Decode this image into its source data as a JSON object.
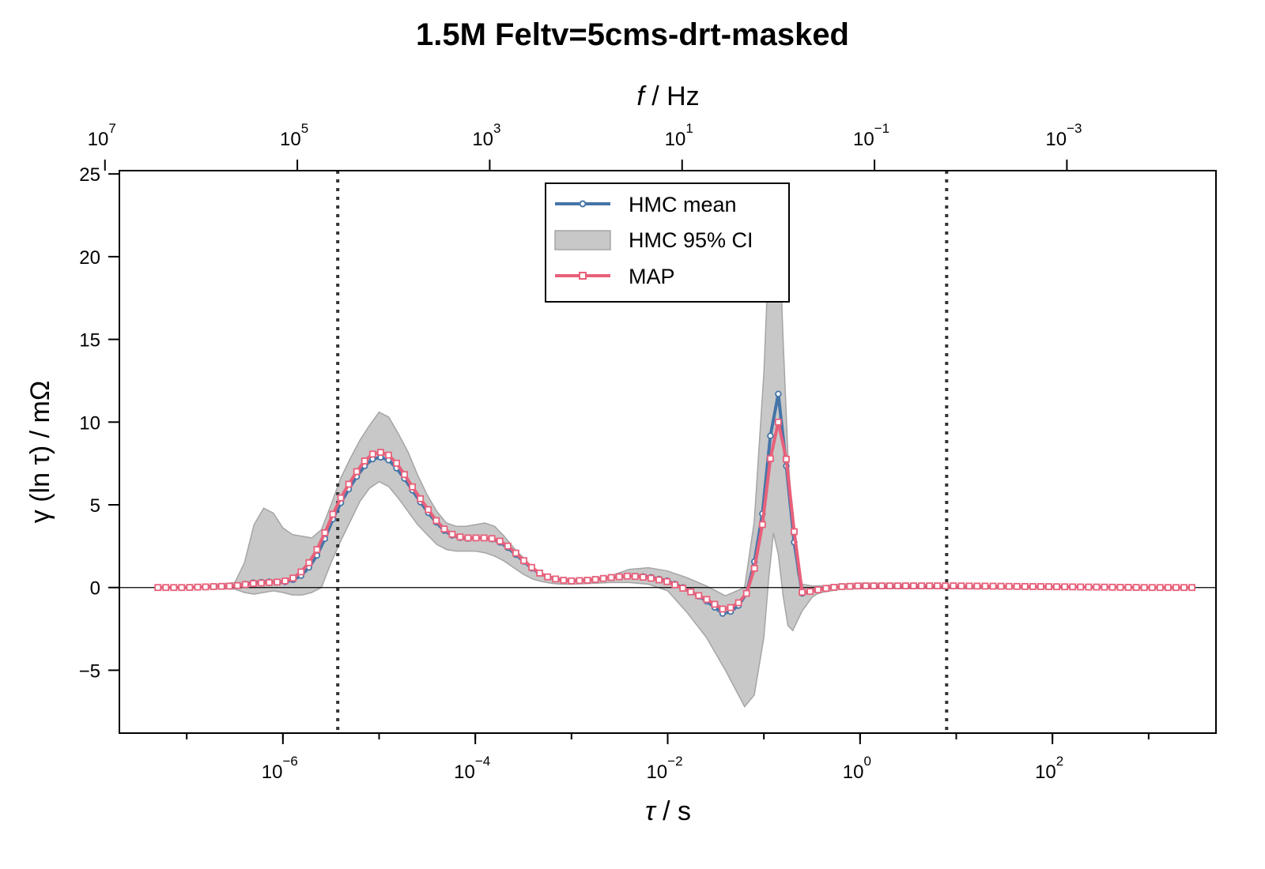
{
  "chart_data": {
    "type": "line",
    "title": "1.5M Feltv=5cms-drt-masked",
    "xlabel": {
      "italic": "τ",
      "rest": " / s"
    },
    "ylabel": "γ (ln τ) / mΩ",
    "top_xlabel": {
      "italic": "f",
      "rest": " / Hz"
    },
    "xscale": "log",
    "xlim_log10": [
      -7.7,
      3.7
    ],
    "ylim": [
      -8.8,
      25.2
    ],
    "x_ticks": [
      {
        "log10": -6,
        "base": "10",
        "exp": "−6"
      },
      {
        "log10": -4,
        "base": "10",
        "exp": "−4"
      },
      {
        "log10": -2,
        "base": "10",
        "exp": "−2"
      },
      {
        "log10": 0,
        "base": "10",
        "exp": "0"
      },
      {
        "log10": 2,
        "base": "10",
        "exp": "2"
      }
    ],
    "top_ticks": [
      {
        "tau_log10": -7.85,
        "base": "10",
        "exp": "7"
      },
      {
        "tau_log10": -5.85,
        "base": "10",
        "exp": "5"
      },
      {
        "tau_log10": -3.85,
        "base": "10",
        "exp": "3"
      },
      {
        "tau_log10": -1.85,
        "base": "10",
        "exp": "1"
      },
      {
        "tau_log10": 0.15,
        "base": "10",
        "exp": "−1"
      },
      {
        "tau_log10": 2.15,
        "base": "10",
        "exp": "−3"
      }
    ],
    "y_ticks": [
      -5,
      0,
      5,
      10,
      15,
      20,
      25
    ],
    "y_tick_labels": [
      "−5",
      "0",
      "5",
      "10",
      "15",
      "20",
      "25"
    ],
    "vlines_log10": [
      -5.43,
      0.9
    ],
    "hline_y": 0,
    "legend": {
      "position": "top-center",
      "entries": [
        "HMC mean",
        "HMC 95% CI",
        "MAP"
      ]
    },
    "colors": {
      "hmc_mean": "#4575a8",
      "ci_fill": "#c8c8c8",
      "ci_edge": "#a5a5a5",
      "map": "#e8607a",
      "vline": "#333333"
    },
    "series": [
      {
        "name": "HMC mean",
        "x_log10": [
          -7.3,
          -7.0,
          -6.5,
          -6.3,
          -6.15,
          -6.0,
          -5.9,
          -5.8,
          -5.7,
          -5.6,
          -5.5,
          -5.4,
          -5.3,
          -5.2,
          -5.1,
          -5.0,
          -4.9,
          -4.8,
          -4.7,
          -4.6,
          -4.5,
          -4.4,
          -4.3,
          -4.2,
          -4.1,
          -4.0,
          -3.9,
          -3.8,
          -3.7,
          -3.6,
          -3.5,
          -3.4,
          -3.3,
          -3.2,
          -3.1,
          -3.0,
          -2.8,
          -2.6,
          -2.4,
          -2.2,
          -2.0,
          -1.8,
          -1.6,
          -1.4,
          -1.2,
          -1.1,
          -1.0,
          -0.95,
          -0.9,
          -0.85,
          -0.8,
          -0.75,
          -0.7,
          -0.65,
          -0.6,
          -0.55,
          -0.5,
          -0.45,
          -0.4,
          -0.3,
          -0.2,
          0.0,
          0.5,
          1.0,
          2.0,
          3.0,
          3.45
        ],
        "y": [
          0,
          0,
          0.1,
          0.3,
          0.35,
          0.3,
          0.45,
          0.75,
          1.4,
          2.4,
          3.9,
          5.1,
          6.1,
          7.0,
          7.7,
          7.9,
          7.7,
          7.1,
          6.3,
          5.4,
          4.6,
          3.9,
          3.3,
          3.05,
          2.95,
          3.0,
          3.0,
          2.9,
          2.6,
          2.1,
          1.6,
          1.1,
          0.75,
          0.55,
          0.45,
          0.4,
          0.45,
          0.6,
          0.7,
          0.65,
          0.4,
          -0.1,
          -0.8,
          -1.7,
          -0.8,
          1.5,
          5.0,
          8.2,
          11.0,
          11.7,
          9.9,
          6.0,
          3.6,
          0.8,
          -0.4,
          -0.3,
          -0.2,
          -0.15,
          -0.1,
          0,
          0.05,
          0.1,
          0.1,
          0.1,
          0.05,
          0,
          0
        ]
      },
      {
        "name": "MAP",
        "x_log10": [
          -7.3,
          -7.0,
          -6.5,
          -6.3,
          -6.15,
          -6.0,
          -5.9,
          -5.8,
          -5.7,
          -5.6,
          -5.5,
          -5.4,
          -5.3,
          -5.2,
          -5.1,
          -5.0,
          -4.9,
          -4.8,
          -4.7,
          -4.6,
          -4.5,
          -4.4,
          -4.3,
          -4.2,
          -4.1,
          -4.0,
          -3.9,
          -3.8,
          -3.7,
          -3.6,
          -3.5,
          -3.4,
          -3.3,
          -3.2,
          -3.1,
          -3.0,
          -2.8,
          -2.6,
          -2.4,
          -2.2,
          -2.0,
          -1.8,
          -1.6,
          -1.4,
          -1.2,
          -1.1,
          -1.0,
          -0.95,
          -0.9,
          -0.85,
          -0.8,
          -0.75,
          -0.7,
          -0.65,
          -0.6,
          -0.55,
          -0.5,
          -0.45,
          -0.4,
          -0.3,
          -0.2,
          0.0,
          0.5,
          1.0,
          2.0,
          3.0,
          3.45
        ],
        "y": [
          0,
          0,
          0.1,
          0.25,
          0.3,
          0.35,
          0.55,
          1.0,
          1.7,
          2.8,
          4.2,
          5.4,
          6.4,
          7.3,
          8.0,
          8.2,
          8.0,
          7.4,
          6.5,
          5.6,
          4.8,
          4.0,
          3.4,
          3.1,
          3.0,
          3.0,
          3.0,
          2.95,
          2.7,
          2.2,
          1.65,
          1.15,
          0.75,
          0.55,
          0.45,
          0.4,
          0.45,
          0.6,
          0.7,
          0.6,
          0.35,
          -0.15,
          -0.7,
          -1.4,
          -0.7,
          1.1,
          4.3,
          7.0,
          9.3,
          10.0,
          9.2,
          7.0,
          4.3,
          1.3,
          -0.35,
          -0.3,
          -0.2,
          -0.15,
          -0.1,
          0,
          0.05,
          0.1,
          0.1,
          0.1,
          0.05,
          0,
          0
        ]
      },
      {
        "name": "HMC 95% CI",
        "x_log10": [
          -7.3,
          -7.0,
          -6.5,
          -6.4,
          -6.3,
          -6.2,
          -6.1,
          -6.0,
          -5.9,
          -5.8,
          -5.7,
          -5.6,
          -5.5,
          -5.4,
          -5.3,
          -5.2,
          -5.1,
          -5.0,
          -4.9,
          -4.8,
          -4.7,
          -4.6,
          -4.5,
          -4.4,
          -4.3,
          -4.2,
          -4.1,
          -4.0,
          -3.9,
          -3.8,
          -3.7,
          -3.6,
          -3.5,
          -3.4,
          -3.3,
          -3.2,
          -3.1,
          -3.0,
          -2.8,
          -2.6,
          -2.4,
          -2.2,
          -2.0,
          -1.8,
          -1.6,
          -1.4,
          -1.2,
          -1.1,
          -1.0,
          -0.95,
          -0.9,
          -0.85,
          -0.8,
          -0.75,
          -0.7,
          -0.65,
          -0.6,
          -0.55,
          -0.5,
          -0.45,
          -0.4,
          -0.3,
          -0.2,
          0.0,
          0.5,
          1.0,
          2.0,
          3.0,
          3.45
        ],
        "upper": [
          0,
          0,
          0.3,
          1.5,
          3.8,
          4.8,
          4.5,
          3.6,
          3.2,
          3.1,
          3.0,
          3.5,
          5.0,
          6.6,
          7.8,
          8.9,
          9.8,
          10.6,
          10.3,
          9.3,
          8.2,
          6.8,
          5.6,
          4.6,
          3.9,
          3.7,
          3.7,
          3.8,
          3.9,
          3.7,
          3.1,
          2.4,
          1.8,
          1.2,
          0.85,
          0.65,
          0.55,
          0.5,
          0.55,
          0.7,
          1.1,
          1.2,
          1.0,
          0.6,
          0.1,
          -0.5,
          0,
          4.0,
          13.0,
          20.0,
          23.6,
          22.8,
          15.0,
          8.0,
          4.0,
          0.8,
          0.2,
          0.15,
          0.1,
          0.1,
          0.1,
          0.15,
          0.2,
          0.25,
          0.2,
          0.15,
          0.1,
          0.05,
          0
        ],
        "lower": [
          0,
          0,
          -0.1,
          -0.3,
          -0.4,
          -0.3,
          -0.2,
          -0.3,
          -0.45,
          -0.45,
          -0.3,
          0,
          1.5,
          2.8,
          4.0,
          5.2,
          6.0,
          6.4,
          6.1,
          5.4,
          4.6,
          3.8,
          3.2,
          2.6,
          2.3,
          2.2,
          2.2,
          2.2,
          2.1,
          1.9,
          1.6,
          1.2,
          0.8,
          0.5,
          0.35,
          0.25,
          0.2,
          0.2,
          0.25,
          0.3,
          0.3,
          0.2,
          -0.2,
          -1.5,
          -3.0,
          -5.0,
          -7.2,
          -6.5,
          -3.0,
          0.5,
          3.3,
          2.0,
          -0.5,
          -2.3,
          -2.6,
          -2.0,
          -1.4,
          -1.0,
          -0.6,
          -0.4,
          -0.3,
          -0.2,
          -0.1,
          -0.05,
          -0.05,
          -0.05,
          -0.05,
          0,
          0
        ]
      }
    ]
  }
}
